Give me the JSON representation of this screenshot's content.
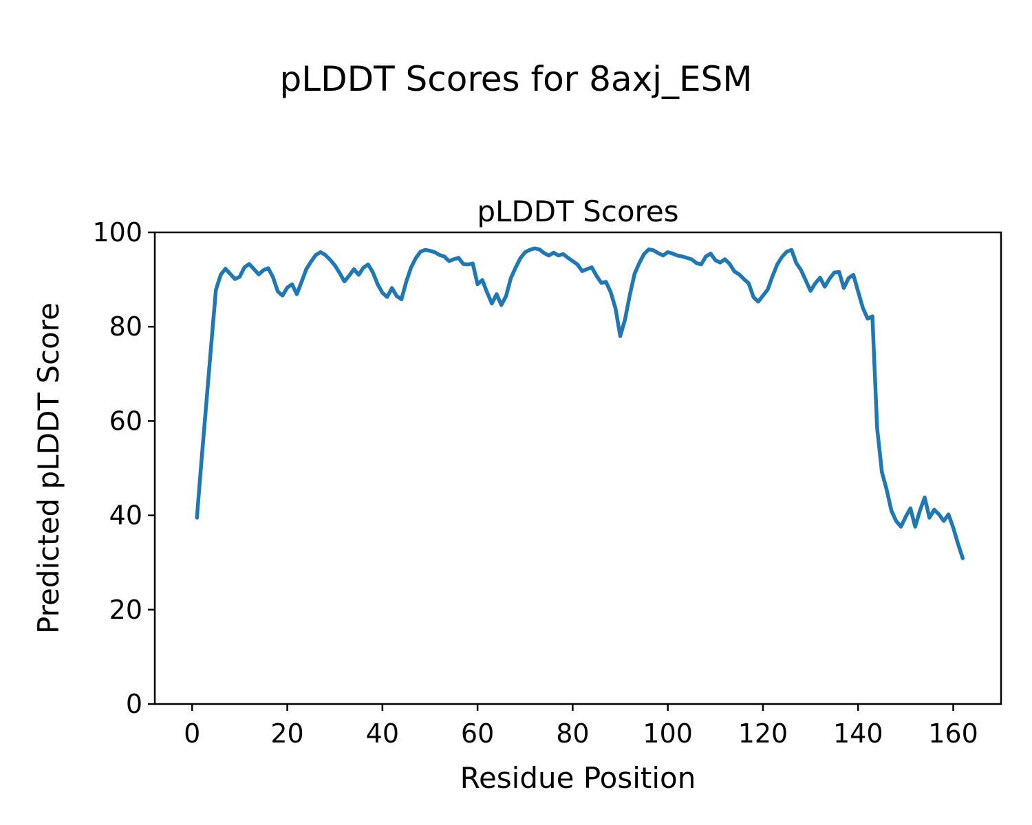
{
  "figure": {
    "title": "pLDDT Scores for 8axj_ESM"
  },
  "chart_data": {
    "type": "line",
    "title": "pLDDT Scores",
    "xlabel": "Residue Position",
    "ylabel": "Predicted pLDDT Score",
    "xlim": [
      -7.85,
      170.05
    ],
    "ylim": [
      0,
      100
    ],
    "xticks": [
      0,
      20,
      40,
      60,
      80,
      100,
      120,
      140,
      160
    ],
    "yticks": [
      0,
      20,
      40,
      60,
      80,
      100
    ],
    "grid": false,
    "legend": "none",
    "line_color": "#1f77b4",
    "background_color": "#ffffff",
    "series": [
      {
        "name": "pLDDT",
        "x": [
          1,
          2,
          3,
          4,
          5,
          6,
          7,
          8,
          9,
          10,
          11,
          12,
          13,
          14,
          15,
          16,
          17,
          18,
          19,
          20,
          21,
          22,
          23,
          24,
          25,
          26,
          27,
          28,
          29,
          30,
          31,
          32,
          33,
          34,
          35,
          36,
          37,
          38,
          39,
          40,
          41,
          42,
          43,
          44,
          45,
          46,
          47,
          48,
          49,
          50,
          51,
          52,
          53,
          54,
          55,
          56,
          57,
          58,
          59,
          60,
          61,
          62,
          63,
          64,
          65,
          66,
          67,
          68,
          69,
          70,
          71,
          72,
          73,
          74,
          75,
          76,
          77,
          78,
          79,
          80,
          81,
          82,
          83,
          84,
          85,
          86,
          87,
          88,
          89,
          90,
          91,
          92,
          93,
          94,
          95,
          96,
          97,
          98,
          99,
          100,
          101,
          102,
          103,
          104,
          105,
          106,
          107,
          108,
          109,
          110,
          111,
          112,
          113,
          114,
          115,
          116,
          117,
          118,
          119,
          120,
          121,
          122,
          123,
          124,
          125,
          126,
          127,
          128,
          129,
          130,
          131,
          132,
          133,
          134,
          135,
          136,
          137,
          138,
          139,
          140,
          141,
          142,
          143,
          144,
          145,
          146,
          147,
          148,
          149,
          150,
          151,
          152,
          153,
          154,
          155,
          156,
          157,
          158,
          159,
          160,
          161,
          162
        ],
        "y": [
          39.5,
          52.0,
          64.0,
          76.0,
          87.8,
          91.0,
          92.3,
          91.2,
          90.1,
          90.6,
          92.6,
          93.3,
          92.2,
          91.1,
          92.0,
          92.4,
          90.5,
          87.5,
          86.6,
          88.3,
          89.0,
          86.9,
          89.5,
          92.2,
          93.8,
          95.2,
          95.8,
          95.2,
          94.2,
          93.0,
          91.4,
          89.6,
          90.8,
          92.2,
          91.0,
          92.5,
          93.2,
          91.5,
          89.0,
          87.2,
          86.3,
          88.2,
          86.5,
          85.8,
          89.5,
          92.5,
          94.5,
          95.9,
          96.3,
          96.1,
          95.8,
          95.2,
          94.9,
          93.9,
          94.3,
          94.6,
          93.3,
          93.2,
          93.4,
          89.0,
          89.9,
          87.3,
          84.9,
          86.9,
          84.6,
          86.5,
          90.3,
          92.5,
          94.5,
          95.8,
          96.3,
          96.6,
          96.4,
          95.6,
          95.1,
          95.7,
          95.1,
          95.4,
          94.6,
          93.9,
          93.2,
          91.8,
          92.2,
          92.6,
          90.8,
          89.3,
          89.5,
          87.3,
          83.9,
          78.0,
          81.5,
          86.7,
          91.2,
          93.5,
          95.4,
          96.4,
          96.2,
          95.6,
          95.1,
          95.8,
          95.5,
          95.1,
          94.9,
          94.6,
          94.3,
          93.5,
          93.2,
          94.9,
          95.5,
          94.1,
          93.6,
          94.3,
          93.3,
          91.7,
          91.1,
          90.1,
          89.2,
          86.3,
          85.3,
          86.6,
          87.9,
          90.7,
          93.2,
          94.8,
          95.9,
          96.3,
          93.5,
          92.0,
          89.8,
          87.6,
          89.2,
          90.4,
          88.5,
          90.2,
          91.5,
          91.6,
          88.2,
          90.3,
          91.0,
          87.5,
          84.0,
          81.7,
          82.2,
          58.5,
          49.2,
          45.5,
          41.0,
          38.8,
          37.6,
          39.7,
          41.5,
          37.6,
          41.0,
          43.8,
          39.5,
          41.2,
          40.2,
          38.8,
          40.2,
          37.4,
          34.0,
          30.9
        ]
      }
    ]
  }
}
